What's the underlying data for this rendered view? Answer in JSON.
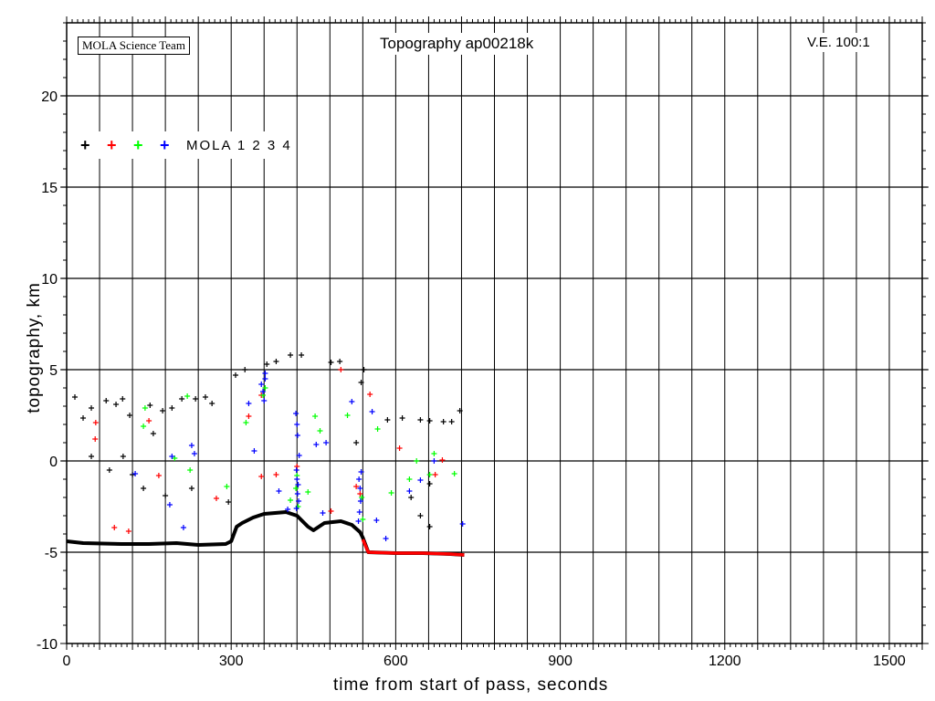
{
  "chart_data": {
    "type": "scatter",
    "title": "Topography ap00218k",
    "credit": "MOLA Science Team",
    "vertical_exaggeration": "V.E. 100:1",
    "xlabel": "time from start of pass, seconds",
    "ylabel": "topography, km",
    "xlim": [
      0,
      1560
    ],
    "ylim": [
      -10,
      24
    ],
    "xticks": [
      0,
      300,
      600,
      900,
      1200,
      1500
    ],
    "yticks": [
      -10,
      -5,
      0,
      5,
      10,
      15,
      20
    ],
    "x_grid_step": 60,
    "y_grid_step": 5,
    "grid": true,
    "legend": {
      "label": "MOLA 1 2 3 4",
      "placement": "top-left",
      "markers": [
        "#000000",
        "#ff0000",
        "#00ff00",
        "#0000ff"
      ]
    },
    "ground_profile": {
      "color": "#000000",
      "x": [
        0,
        30,
        100,
        150,
        200,
        240,
        290,
        300,
        310,
        320,
        340,
        360,
        400,
        420,
        440,
        450,
        470,
        500,
        520,
        535,
        540,
        550,
        600,
        650,
        700,
        725
      ],
      "y": [
        -4.4,
        -4.5,
        -4.55,
        -4.55,
        -4.5,
        -4.6,
        -4.55,
        -4.4,
        -3.6,
        -3.4,
        -3.1,
        -2.9,
        -2.8,
        -3.0,
        -3.6,
        -3.8,
        -3.4,
        -3.3,
        -3.5,
        -3.9,
        -4.2,
        -5.0,
        -5.05,
        -5.05,
        -5.1,
        -5.15
      ]
    },
    "ground_profile_ch2": {
      "color": "#ff0000",
      "x": [
        540,
        550,
        600,
        650,
        700,
        725
      ],
      "y": [
        -4.3,
        -5.0,
        -5.05,
        -5.05,
        -5.1,
        -5.15
      ]
    },
    "series": [
      {
        "name": "MOLA 1",
        "color": "#000000",
        "points": [
          [
            15,
            3.5
          ],
          [
            30,
            2.35
          ],
          [
            45,
            2.9
          ],
          [
            72,
            3.3
          ],
          [
            90,
            3.1
          ],
          [
            102,
            3.4
          ],
          [
            115,
            2.5
          ],
          [
            152,
            3.05
          ],
          [
            158,
            1.5
          ],
          [
            175,
            2.75
          ],
          [
            192,
            2.9
          ],
          [
            210,
            3.4
          ],
          [
            235,
            3.4
          ],
          [
            253,
            3.5
          ],
          [
            265,
            3.15
          ],
          [
            308,
            4.7
          ],
          [
            325,
            5.0
          ],
          [
            365,
            5.3
          ],
          [
            382,
            5.45
          ],
          [
            408,
            5.8
          ],
          [
            428,
            5.8
          ],
          [
            482,
            5.4
          ],
          [
            498,
            5.45
          ],
          [
            537,
            4.3
          ],
          [
            542,
            5.0
          ],
          [
            585,
            2.25
          ],
          [
            612,
            2.35
          ],
          [
            645,
            2.25
          ],
          [
            662,
            2.2
          ],
          [
            687,
            2.15
          ],
          [
            702,
            2.15
          ],
          [
            717,
            2.75
          ],
          [
            45,
            0.25
          ],
          [
            78,
            -0.5
          ],
          [
            120,
            -0.75
          ],
          [
            140,
            -1.5
          ],
          [
            180,
            -1.9
          ],
          [
            228,
            -1.5
          ],
          [
            295,
            -2.25
          ],
          [
            103,
            0.25
          ],
          [
            528,
            1.0
          ],
          [
            628,
            -2.0
          ],
          [
            645,
            -3.0
          ],
          [
            662,
            -3.6
          ],
          [
            662,
            -1.25
          ]
        ]
      },
      {
        "name": "MOLA 2",
        "color": "#ff0000",
        "points": [
          [
            53,
            2.1
          ],
          [
            52,
            1.2
          ],
          [
            150,
            2.2
          ],
          [
            168,
            -0.8
          ],
          [
            87,
            -3.65
          ],
          [
            113,
            -3.85
          ],
          [
            273,
            -2.05
          ],
          [
            332,
            2.45
          ],
          [
            500,
            5.0
          ],
          [
            553,
            3.65
          ],
          [
            607,
            0.7
          ],
          [
            672,
            -0.75
          ],
          [
            685,
            0.05
          ],
          [
            528,
            -1.4
          ],
          [
            482,
            -2.75
          ],
          [
            382,
            -0.75
          ],
          [
            355,
            -0.85
          ],
          [
            355,
            3.6
          ],
          [
            420,
            -0.3
          ],
          [
            535,
            -1.8
          ]
        ]
      },
      {
        "name": "MOLA 3",
        "color": "#00ff00",
        "points": [
          [
            140,
            1.9
          ],
          [
            143,
            2.9
          ],
          [
            220,
            3.55
          ],
          [
            225,
            -0.5
          ],
          [
            197,
            0.15
          ],
          [
            292,
            -1.4
          ],
          [
            327,
            2.1
          ],
          [
            362,
            4.0
          ],
          [
            453,
            2.45
          ],
          [
            462,
            1.65
          ],
          [
            512,
            2.5
          ],
          [
            567,
            1.75
          ],
          [
            592,
            -1.75
          ],
          [
            625,
            -1.0
          ],
          [
            638,
            0
          ],
          [
            670,
            0.4
          ],
          [
            662,
            -0.75
          ],
          [
            707,
            -0.7
          ],
          [
            440,
            -1.7
          ],
          [
            408,
            -2.15
          ],
          [
            418,
            -1.5
          ],
          [
            422,
            -2.5
          ],
          [
            420,
            -0.8
          ],
          [
            538,
            -2.0
          ],
          [
            540,
            -3.2
          ],
          [
            358,
            3.6
          ]
        ]
      },
      {
        "name": "MOLA 4",
        "color": "#0000ff",
        "points": [
          [
            125,
            -0.7
          ],
          [
            192,
            0.25
          ],
          [
            188,
            -2.4
          ],
          [
            213,
            -3.65
          ],
          [
            228,
            0.85
          ],
          [
            233,
            0.4
          ],
          [
            332,
            3.15
          ],
          [
            342,
            0.55
          ],
          [
            362,
            4.8
          ],
          [
            387,
            -1.65
          ],
          [
            403,
            -2.65
          ],
          [
            455,
            0.9
          ],
          [
            473,
            1.0
          ],
          [
            520,
            3.25
          ],
          [
            557,
            2.7
          ],
          [
            565,
            -3.25
          ],
          [
            625,
            -1.65
          ],
          [
            645,
            -1.05
          ],
          [
            670,
            0
          ],
          [
            722,
            -3.45
          ],
          [
            467,
            -2.85
          ],
          [
            582,
            -4.25
          ],
          [
            355,
            4.2
          ],
          [
            358,
            3.8
          ],
          [
            360,
            3.3
          ],
          [
            362,
            4.5
          ],
          [
            418,
            2.6
          ],
          [
            420,
            2.0
          ],
          [
            421,
            1.4
          ],
          [
            419,
            -0.5
          ],
          [
            420,
            -1.0
          ],
          [
            422,
            -1.3
          ],
          [
            421,
            -1.8
          ],
          [
            423,
            -2.2
          ],
          [
            424,
            0.3
          ],
          [
            419,
            -2.6
          ],
          [
            533,
            -1.0
          ],
          [
            535,
            -1.5
          ],
          [
            536,
            -2.2
          ],
          [
            534,
            -2.8
          ],
          [
            537,
            -0.6
          ],
          [
            532,
            -3.3
          ]
        ]
      }
    ]
  }
}
